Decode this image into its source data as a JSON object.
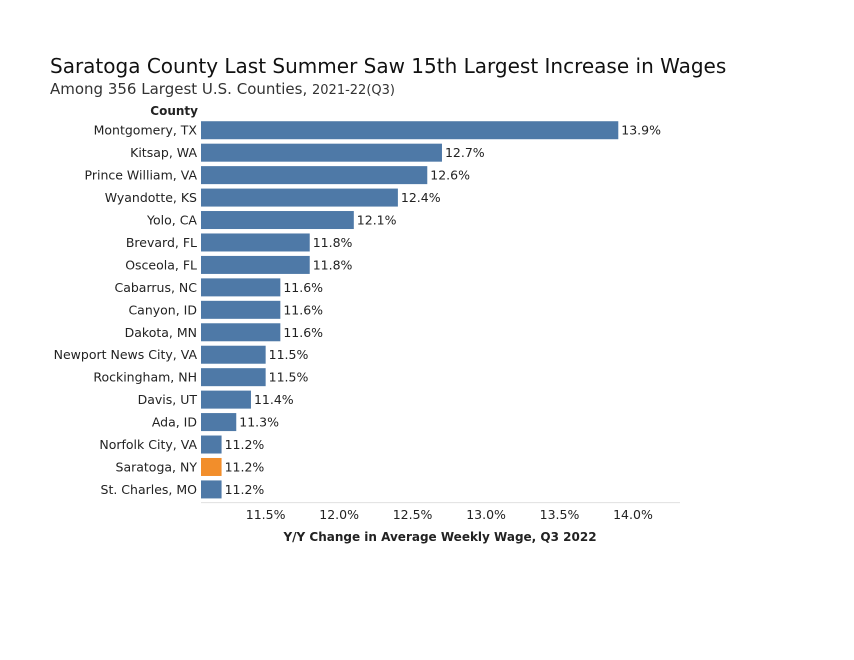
{
  "chart_data": {
    "type": "bar",
    "orientation": "horizontal",
    "title": "Saratoga County Last Summer Saw 15th Largest Increase in Wages",
    "subtitle_main": "Among 356 Largest U.S. Counties, ",
    "subtitle_period": "2021-22(Q3)",
    "ylabel": "County",
    "xlabel": "Y/Y Change in Average Weekly Wage, Q3 2022",
    "categories": [
      "Montgomery, TX",
      "Kitsap, WA",
      "Prince William, VA",
      "Wyandotte, KS",
      "Yolo, CA",
      "Brevard, FL",
      "Osceola, FL",
      "Cabarrus, NC",
      "Canyon, ID",
      "Dakota, MN",
      "Newport News City, VA",
      "Rockingham, NH",
      "Davis, UT",
      "Ada, ID",
      "Norfolk City, VA",
      "Saratoga, NY",
      "St. Charles, MO"
    ],
    "values": [
      13.9,
      12.7,
      12.6,
      12.4,
      12.1,
      11.8,
      11.8,
      11.6,
      11.6,
      11.6,
      11.5,
      11.5,
      11.4,
      11.3,
      11.2,
      11.2,
      11.2
    ],
    "value_labels": [
      "13.9%",
      "12.7%",
      "12.6%",
      "12.4%",
      "12.1%",
      "11.8%",
      "11.8%",
      "11.6%",
      "11.6%",
      "11.6%",
      "11.5%",
      "11.5%",
      "11.4%",
      "11.3%",
      "11.2%",
      "11.2%",
      "11.2%"
    ],
    "highlight_index": 15,
    "xlim": [
      11.06,
      14.32
    ],
    "ticks": [
      11.5,
      12.0,
      12.5,
      13.0,
      13.5,
      14.0
    ],
    "tick_labels": [
      "11.5%",
      "12.0%",
      "12.5%",
      "13.0%",
      "13.5%",
      "14.0%"
    ],
    "grid": false,
    "colors": {
      "bar": "#4e79a7",
      "highlight": "#f28e2b"
    }
  }
}
